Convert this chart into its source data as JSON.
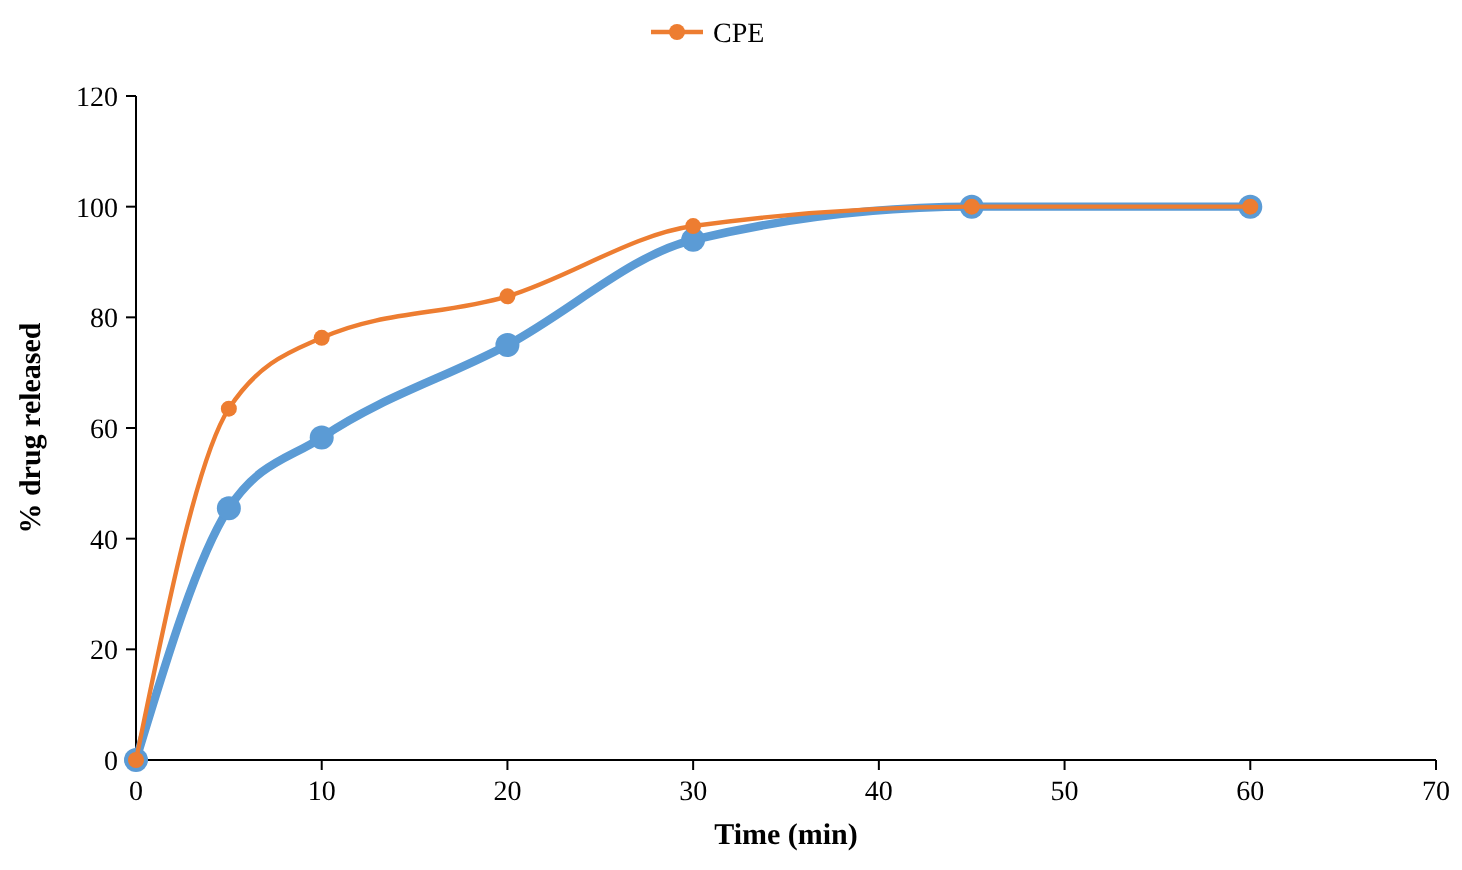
{
  "chart_data": {
    "type": "line",
    "xlabel": "Time (min)",
    "ylabel": "% drug released",
    "x": [
      0,
      5,
      10,
      20,
      30,
      45,
      60
    ],
    "series": [
      {
        "color": "#5b9bd5",
        "values": [
          0,
          45.5,
          58.3,
          75,
          94,
          100,
          100
        ]
      },
      {
        "name": "CPE",
        "color": "#ed7d31",
        "values": [
          0,
          63.5,
          76.3,
          83.8,
          96.5,
          100,
          100
        ]
      }
    ],
    "xlim": [
      0,
      70
    ],
    "xticks": [
      0,
      10,
      20,
      30,
      40,
      50,
      60,
      70
    ],
    "ylim": [
      0,
      120
    ],
    "yticks": [
      0,
      20,
      40,
      60,
      80,
      100,
      120
    ],
    "grid": false,
    "legend": "top",
    "marker": "circle",
    "line_style": "solid"
  }
}
